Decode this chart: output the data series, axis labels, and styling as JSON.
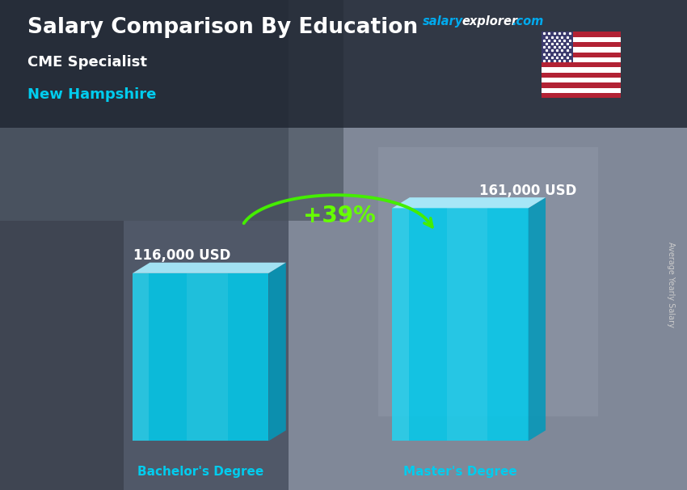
{
  "title_main": "Salary Comparison By Education",
  "subtitle1": "CME Specialist",
  "subtitle2": "New Hampshire",
  "categories": [
    "Bachelor's Degree",
    "Master's Degree"
  ],
  "values": [
    116000,
    161000
  ],
  "value_labels": [
    "116,000 USD",
    "161,000 USD"
  ],
  "pct_change": "+39%",
  "bar_face_color": "#00ccee",
  "bar_top_color": "#aaeeff",
  "bar_side_color": "#0099bb",
  "bar_face_alpha": 0.82,
  "bg_color": "#5a6070",
  "text_color_white": "#ffffff",
  "text_color_cyan": "#00ccee",
  "text_color_green": "#66ff00",
  "arrow_color": "#44ee00",
  "salary_text_color": "#00aaff",
  "side_text": "Average Yearly Salary",
  "ylim_max": 210000,
  "flag_colors": {
    "stripes_red": "#B22234",
    "stripes_white": "#FFFFFF",
    "canton_blue": "#3C3B6E"
  }
}
